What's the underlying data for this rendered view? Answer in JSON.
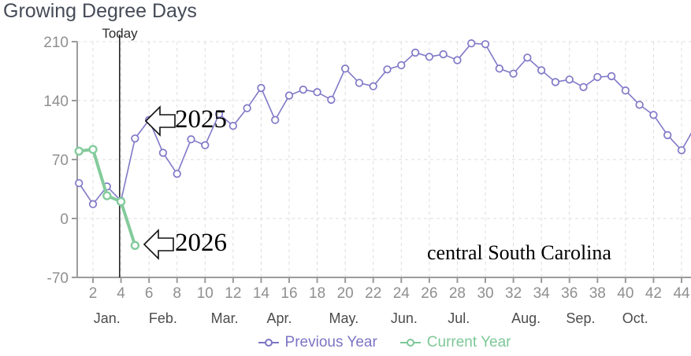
{
  "page": {
    "title": "Growing Degree Days"
  },
  "chart_data": {
    "type": "line",
    "title": "Growing Degree Days",
    "x_unit": "week of year",
    "x_ticks": [
      2,
      4,
      6,
      8,
      10,
      12,
      14,
      16,
      18,
      20,
      22,
      24,
      26,
      28,
      30,
      32,
      34,
      36,
      38,
      40,
      42,
      44
    ],
    "months": [
      {
        "label": "Jan.",
        "week": 3
      },
      {
        "label": "Feb.",
        "week": 7
      },
      {
        "label": "Mar.",
        "week": 11.4
      },
      {
        "label": "Apr.",
        "week": 15.3
      },
      {
        "label": "May.",
        "week": 19.9
      },
      {
        "label": "Jun.",
        "week": 24.2
      },
      {
        "label": "Jul.",
        "week": 28.1
      },
      {
        "label": "Aug.",
        "week": 32.9
      },
      {
        "label": "Sep.",
        "week": 36.8
      },
      {
        "label": "Oct.",
        "week": 40.7
      }
    ],
    "y_ticks": [
      210,
      140,
      70,
      0,
      -70
    ],
    "ylim": [
      -70,
      210
    ],
    "grid": "dashed",
    "today_week": 3.9,
    "today_label": "Today",
    "series": [
      {
        "name": "Previous Year",
        "color": "#8079c7",
        "marker": "open-circle",
        "start_week": 1,
        "values": [
          42,
          17,
          38,
          21,
          95,
          117,
          78,
          53,
          94,
          87,
          124,
          110,
          131,
          155,
          117,
          146,
          153,
          150,
          141,
          178,
          161,
          157,
          177,
          182,
          197,
          192,
          195,
          188,
          208,
          207,
          178,
          172,
          191,
          176,
          162,
          165,
          156,
          168,
          169,
          152,
          135,
          123,
          99,
          81
        ],
        "clipped_next_point": {
          "week": 45,
          "value": 110
        }
      },
      {
        "name": "Current Year",
        "color": "#84cb9c",
        "marker": "open-circle",
        "start_week": 1,
        "values": [
          80,
          82,
          27,
          20,
          -32
        ]
      }
    ],
    "annotations": {
      "year_2025": "2025",
      "year_2026": "2026",
      "region": "central South Carolina"
    },
    "legend_position": "bottom-center"
  }
}
